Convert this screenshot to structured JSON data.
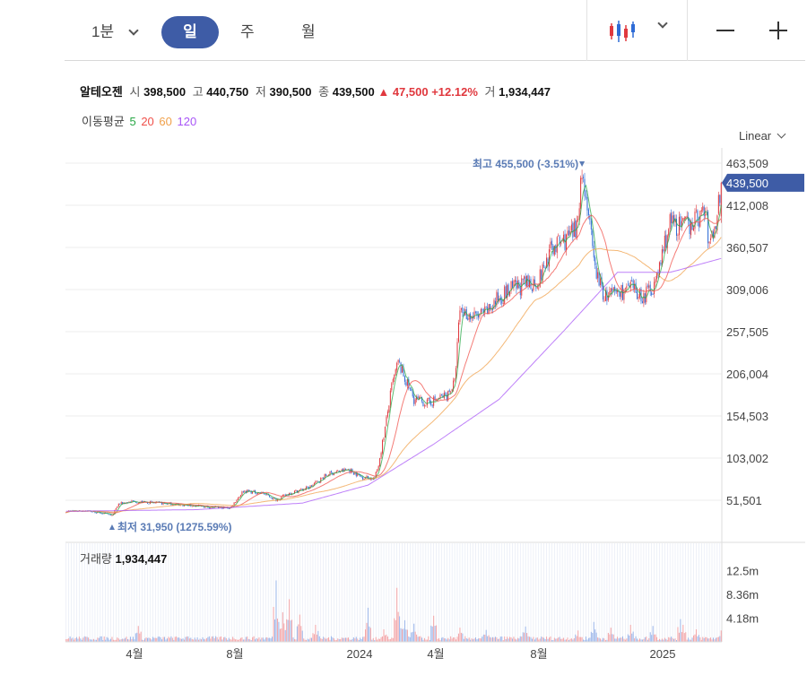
{
  "toolbar": {
    "timeframes": [
      "1분",
      "일",
      "주",
      "월"
    ],
    "active": "일"
  },
  "info": {
    "name": "알테오젠",
    "open_label": "시",
    "open": "398,500",
    "high_label": "고",
    "high": "440,750",
    "low_label": "저",
    "low": "390,500",
    "close_label": "종",
    "close": "439,500",
    "change": "▲ 47,500",
    "change_pct": "+12.12%",
    "volume_label": "거",
    "volume": "1,934,447"
  },
  "ma": {
    "label": "이동평균",
    "periods": [
      "5",
      "20",
      "60",
      "120"
    ],
    "colors": [
      "#27a744",
      "#f0504a",
      "#f0a04a",
      "#a855f7"
    ]
  },
  "scale": "Linear",
  "volume_panel": {
    "label": "거래량",
    "value": "1,934,447"
  },
  "colors": {
    "up": "#e0383e",
    "down": "#2e6bd6",
    "accent": "#3e5ca6",
    "annotation": "#5a7bb5"
  },
  "chart_data": {
    "type": "candlestick",
    "y_ticks": [
      51501,
      103002,
      154503,
      206004,
      257505,
      309006,
      360507,
      412008,
      463509
    ],
    "y_tick_labels": [
      "51,501",
      "103,002",
      "154,503",
      "206,004",
      "257,505",
      "309,006",
      "360,507",
      "412,008",
      "463,509"
    ],
    "y_range": [
      0,
      463509
    ],
    "x_tick_labels": [
      "4월",
      "8월",
      "2024",
      "4월",
      "8월",
      "2025"
    ],
    "last_price": 439500,
    "last_price_label": "439,500",
    "high_annotation": "최고 455,500 (-3.51%)",
    "low_annotation": "최저 31,950 (1275.59%)",
    "price_anchors": [
      [
        0,
        38000
      ],
      [
        15,
        39000
      ],
      [
        30,
        35000
      ],
      [
        35,
        32500
      ],
      [
        40,
        47000
      ],
      [
        50,
        50000
      ],
      [
        80,
        47000
      ],
      [
        110,
        43000
      ],
      [
        125,
        42000
      ],
      [
        135,
        63000
      ],
      [
        150,
        60000
      ],
      [
        160,
        52000
      ],
      [
        170,
        60000
      ],
      [
        185,
        67000
      ],
      [
        200,
        84000
      ],
      [
        215,
        89000
      ],
      [
        225,
        80000
      ],
      [
        235,
        78000
      ],
      [
        238,
        95000
      ],
      [
        243,
        140000
      ],
      [
        248,
        190000
      ],
      [
        253,
        220000
      ],
      [
        258,
        200000
      ],
      [
        265,
        175000
      ],
      [
        275,
        170000
      ],
      [
        290,
        180000
      ],
      [
        296,
        195000
      ],
      [
        300,
        285000
      ],
      [
        310,
        275000
      ],
      [
        320,
        280000
      ],
      [
        330,
        300000
      ],
      [
        340,
        310000
      ],
      [
        350,
        315000
      ],
      [
        360,
        320000
      ],
      [
        370,
        360000
      ],
      [
        380,
        370000
      ],
      [
        388,
        380000
      ],
      [
        393,
        450000
      ],
      [
        397,
        415000
      ],
      [
        402,
        340000
      ],
      [
        410,
        300000
      ],
      [
        420,
        305000
      ],
      [
        430,
        310000
      ],
      [
        440,
        300000
      ],
      [
        450,
        320000
      ],
      [
        455,
        360000
      ],
      [
        460,
        390000
      ],
      [
        470,
        385000
      ],
      [
        480,
        395000
      ],
      [
        487,
        405000
      ],
      [
        490,
        362000
      ],
      [
        495,
        392000
      ],
      [
        499,
        439500
      ]
    ],
    "ma120_anchors": [
      [
        0,
        38000
      ],
      [
        100,
        40000
      ],
      [
        180,
        48000
      ],
      [
        230,
        70000
      ],
      [
        280,
        120000
      ],
      [
        330,
        175000
      ],
      [
        380,
        260000
      ],
      [
        420,
        330000
      ],
      [
        460,
        330000
      ],
      [
        499,
        347000
      ]
    ],
    "volume_ticks": [
      4180000,
      8360000,
      12500000
    ],
    "volume_tick_labels": [
      "4.18m",
      "8.36m",
      "12.5m"
    ],
    "volume_range": [
      0,
      14500000
    ],
    "volume_spikes": [
      [
        55,
        2800000
      ],
      [
        160,
        10800000
      ],
      [
        162,
        3500000
      ],
      [
        165,
        5200000
      ],
      [
        170,
        7500000
      ],
      [
        178,
        4800000
      ],
      [
        190,
        3000000
      ],
      [
        230,
        6000000
      ],
      [
        242,
        2200000
      ],
      [
        252,
        9500000
      ],
      [
        254,
        4500000
      ],
      [
        258,
        3800000
      ],
      [
        265,
        3200000
      ],
      [
        280,
        4600000
      ],
      [
        300,
        2500000
      ],
      [
        320,
        2100000
      ],
      [
        350,
        2700000
      ],
      [
        390,
        2000000
      ],
      [
        402,
        3500000
      ],
      [
        415,
        2500000
      ],
      [
        430,
        3000000
      ],
      [
        447,
        2800000
      ],
      [
        468,
        4000000
      ],
      [
        470,
        3000000
      ],
      [
        480,
        2200000
      ],
      [
        499,
        2000000
      ]
    ]
  }
}
